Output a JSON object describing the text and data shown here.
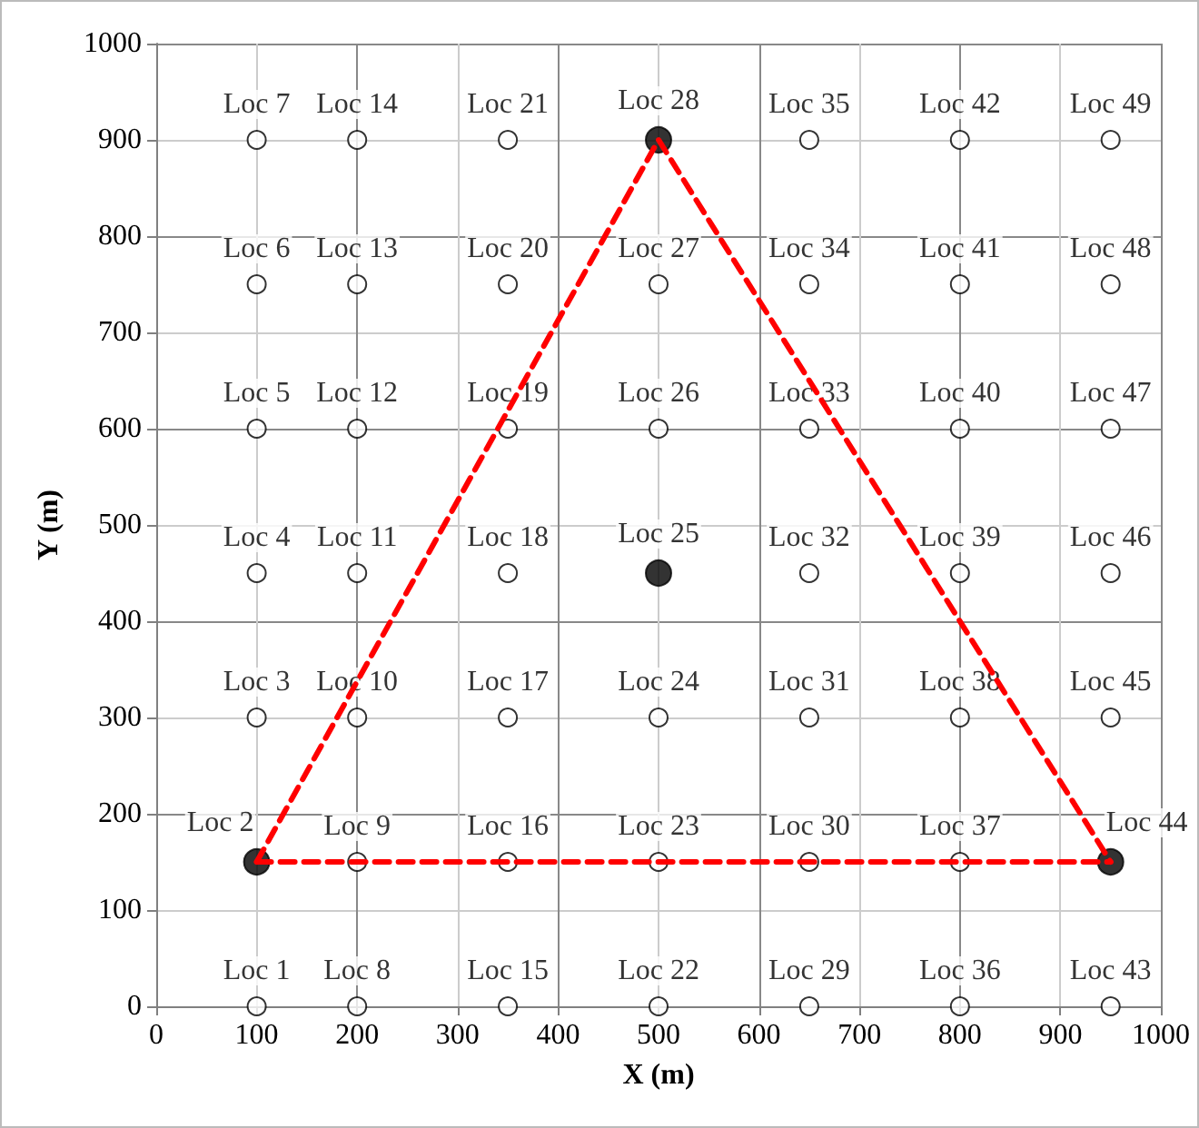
{
  "chart_data": {
    "type": "scatter",
    "xlabel": "X (m)",
    "ylabel": "Y (m)",
    "xlim": [
      0,
      1000
    ],
    "xticks": [
      0,
      100,
      200,
      300,
      400,
      500,
      600,
      700,
      800,
      900,
      1000
    ],
    "ylim": [
      0,
      1000
    ],
    "yticks": [
      0,
      100,
      200,
      300,
      400,
      500,
      600,
      700,
      800,
      900,
      1000
    ],
    "grid": true,
    "marker": "circle",
    "series": [
      {
        "color": "#ffffff",
        "x": [
          100,
          100,
          100,
          100,
          100,
          100,
          200,
          200,
          200,
          200,
          200,
          200,
          200,
          350,
          350,
          350,
          350,
          350,
          350,
          350,
          500,
          500,
          500,
          500,
          500,
          650,
          650,
          650,
          650,
          650,
          650,
          650,
          800,
          800,
          800,
          800,
          800,
          800,
          800,
          950,
          950,
          950,
          950,
          950,
          950
        ],
        "values": [
          0,
          300,
          450,
          600,
          750,
          900,
          0,
          150,
          300,
          450,
          600,
          750,
          900,
          0,
          150,
          300,
          450,
          600,
          750,
          900,
          0,
          150,
          300,
          600,
          750,
          0,
          150,
          300,
          450,
          600,
          750,
          900,
          0,
          150,
          300,
          450,
          600,
          750,
          900,
          0,
          300,
          450,
          600,
          750,
          900
        ],
        "value_labels": [
          "Loc 1",
          "Loc 3",
          "Loc 4",
          "Loc 5",
          "Loc 6",
          "Loc 7",
          "Loc 8",
          "Loc 9",
          "Loc 10",
          "Loc 11",
          "Loc 12",
          "Loc 13",
          "Loc 14",
          "Loc 15",
          "Loc 16",
          "Loc 17",
          "Loc 18",
          "Loc 19",
          "Loc 20",
          "Loc 21",
          "Loc 22",
          "Loc 23",
          "Loc 24",
          "Loc 26",
          "Loc 27",
          "Loc 29",
          "Loc 30",
          "Loc 31",
          "Loc 32",
          "Loc 33",
          "Loc 34",
          "Loc 35",
          "Loc 36",
          "Loc 37",
          "Loc 38",
          "Loc 39",
          "Loc 40",
          "Loc 41",
          "Loc 42",
          "Loc 43",
          "Loc 45",
          "Loc 46",
          "Loc 47",
          "Loc 48",
          "Loc 49"
        ]
      },
      {
        "color": "#000000",
        "x": [
          100,
          500,
          500,
          950
        ],
        "values": [
          150,
          450,
          900,
          150
        ],
        "value_labels": [
          "Loc 2",
          "Loc 25",
          "Loc 28",
          "Loc 44"
        ]
      },
      {
        "type": "line",
        "color": "#ff0000",
        "line_style": "dashed",
        "marker": "none",
        "x": [
          100,
          500,
          950
        ],
        "values": [
          150,
          900,
          150
        ]
      },
      {
        "type": "line",
        "color": "#ff0000",
        "line_style": "dashed",
        "marker": "none",
        "x": [
          100,
          950
        ],
        "values": [
          150,
          150
        ]
      }
    ]
  }
}
